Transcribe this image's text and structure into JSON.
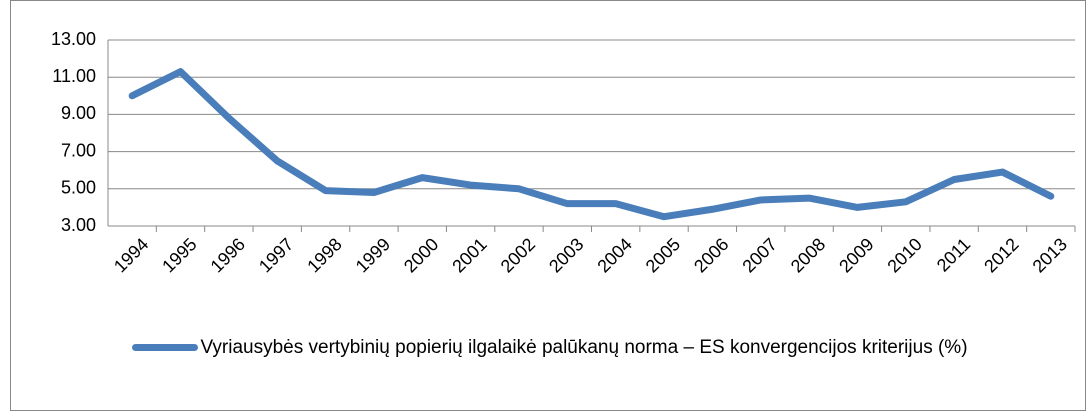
{
  "chart_data": {
    "type": "line",
    "categories": [
      "1994",
      "1995",
      "1996",
      "1997",
      "1998",
      "1999",
      "2000",
      "2001",
      "2002",
      "2003",
      "2004",
      "2005",
      "2006",
      "2007",
      "2008",
      "2009",
      "2010",
      "2011",
      "2012",
      "2013"
    ],
    "series": [
      {
        "name": "Vyriausybės vertybinių popierių ilgalaikė palūkanų norma – ES konvergencijos kriterijus (%)",
        "color": "#4a7ebb",
        "values": [
          10.0,
          11.3,
          8.8,
          6.5,
          4.9,
          4.8,
          5.6,
          5.2,
          5.0,
          4.2,
          4.2,
          3.5,
          3.9,
          4.4,
          4.5,
          4.0,
          4.3,
          5.5,
          5.9,
          4.6
        ]
      }
    ],
    "ylim": [
      3,
      13
    ],
    "yticks": [
      {
        "value": 3,
        "label": "3.00"
      },
      {
        "value": 5,
        "label": "5.00"
      },
      {
        "value": 7,
        "label": "7.00"
      },
      {
        "value": 9,
        "label": "9.00"
      },
      {
        "value": 11,
        "label": "11.00"
      },
      {
        "value": 13,
        "label": "13.00"
      }
    ],
    "grid": true,
    "legend": "bottom"
  }
}
